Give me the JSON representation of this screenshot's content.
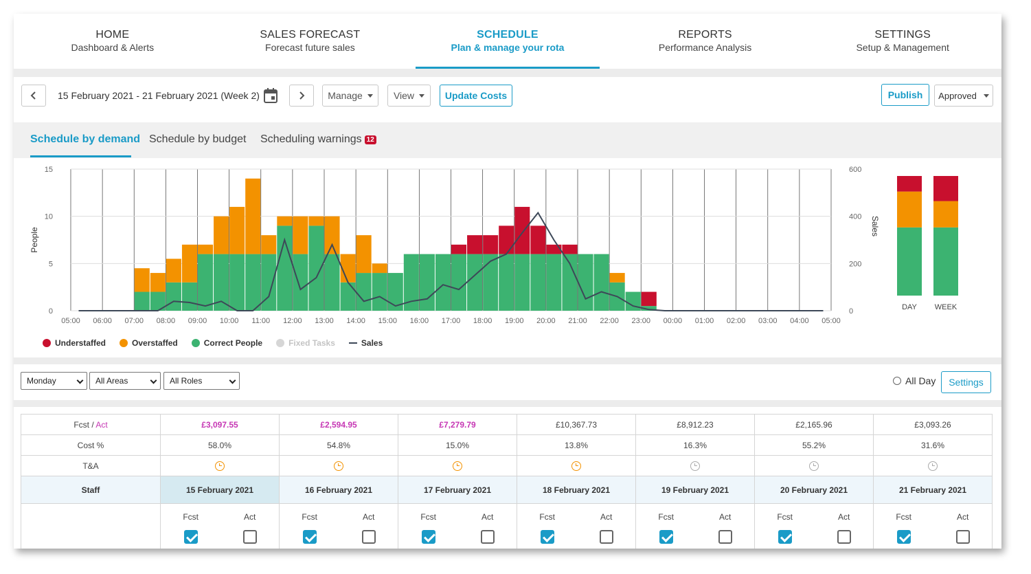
{
  "nav": [
    {
      "title": "HOME",
      "subtitle": "Dashboard & Alerts"
    },
    {
      "title": "SALES FORECAST",
      "subtitle": "Forecast future sales"
    },
    {
      "title": "SCHEDULE",
      "subtitle": "Plan & manage your rota"
    },
    {
      "title": "REPORTS",
      "subtitle": "Performance Analysis"
    },
    {
      "title": "SETTINGS",
      "subtitle": "Setup & Management"
    }
  ],
  "active_nav": "SCHEDULE",
  "toolbar": {
    "date_range": "15 February 2021 - 21 February 2021 (Week 2)",
    "manage_label": "Manage",
    "view_label": "View",
    "update_costs_label": "Update Costs",
    "publish_label": "Publish",
    "status_value": "Approved"
  },
  "tabs": {
    "demand": "Schedule by demand",
    "budget": "Schedule by budget",
    "warnings": "Scheduling warnings",
    "warnings_count": "12"
  },
  "colors": {
    "accent": "#1a9bc7",
    "understaffed": "#c8102e",
    "overstaffed": "#f39200",
    "correct": "#3cb371",
    "fixed": "#cccccc",
    "sales_line": "#3d4858"
  },
  "chart_data": {
    "type": "bar",
    "stacked": true,
    "ylabel": "People",
    "y2label": "Sales",
    "ylim": [
      0,
      15
    ],
    "y2lim": [
      0,
      600
    ],
    "yticks": [
      "0",
      "5",
      "10",
      "15"
    ],
    "y2ticks": [
      "0",
      "200",
      "400",
      "600"
    ],
    "time_labels": [
      "05:00",
      "06:00",
      "07:00",
      "08:00",
      "09:00",
      "10:00",
      "11:00",
      "12:00",
      "13:00",
      "14:00",
      "15:00",
      "16:00",
      "17:00",
      "18:00",
      "19:00",
      "20:00",
      "21:00",
      "22:00",
      "23:00",
      "00:00",
      "01:00",
      "02:00",
      "03:00",
      "04:00",
      "05:00"
    ],
    "series": [
      {
        "name": "Correct People",
        "values": [
          0,
          0,
          0,
          0,
          2,
          2,
          3,
          3,
          6,
          6,
          6,
          6,
          6,
          9,
          6,
          9,
          6,
          3,
          4,
          4,
          4,
          6,
          6,
          6,
          6,
          6,
          6,
          6,
          6,
          6,
          6,
          6,
          6,
          6,
          3,
          2,
          0.5,
          0,
          0,
          0,
          0,
          0,
          0,
          0,
          0,
          0,
          0,
          0
        ]
      },
      {
        "name": "Overstaffed",
        "values": [
          0,
          0,
          0,
          0,
          2.5,
          2,
          2.5,
          4,
          1,
          4,
          5,
          8,
          2,
          1,
          4,
          1,
          4,
          3,
          4,
          1,
          0,
          0,
          0,
          0,
          0,
          0,
          0,
          0,
          0,
          0,
          0,
          0,
          0,
          0,
          1,
          0,
          0,
          0,
          0,
          0,
          0,
          0,
          0,
          0,
          0,
          0,
          0,
          0
        ]
      },
      {
        "name": "Understaffed",
        "values": [
          0,
          0,
          0,
          0,
          0,
          0,
          0,
          0,
          0,
          0,
          0,
          0,
          0,
          0,
          0,
          0,
          0,
          0,
          0,
          0,
          0,
          0,
          0,
          0,
          1,
          2,
          2,
          3,
          5,
          3,
          1,
          1,
          0,
          0,
          0,
          0,
          1.5,
          0,
          0,
          0,
          0,
          0,
          0,
          0,
          0,
          0,
          0,
          0
        ]
      },
      {
        "name": "Sales",
        "values": [
          0,
          0,
          0,
          0,
          0,
          0,
          40,
          35,
          20,
          40,
          0,
          0,
          60,
          300,
          90,
          140,
          280,
          120,
          40,
          60,
          20,
          40,
          50,
          110,
          90,
          150,
          210,
          240,
          330,
          415,
          300,
          200,
          50,
          80,
          60,
          20,
          5,
          0,
          0,
          0,
          0,
          0,
          0,
          0,
          0,
          0,
          0,
          0
        ]
      }
    ],
    "legend": [
      "Understaffed",
      "Overstaffed",
      "Correct People",
      "Fixed Tasks",
      "Sales"
    ],
    "summary": [
      {
        "name": "DAY",
        "correct": 57,
        "overstaffed": 30,
        "understaffed": 13
      },
      {
        "name": "WEEK",
        "correct": 57,
        "overstaffed": 22,
        "understaffed": 21
      }
    ]
  },
  "filters": {
    "day": "Monday",
    "areas": "All Areas",
    "roles": "All Roles",
    "all_day_label": "All Day",
    "settings_label": "Settings"
  },
  "table": {
    "fcst_label": "Fcst",
    "act_label": "Act",
    "cost_label": "Cost %",
    "ta_label": "T&A",
    "staff_label": "Staff",
    "days": [
      {
        "value": "£3,097.55",
        "actual": true,
        "cost": "58.0%",
        "date": "15 February 2021",
        "ta": "orange"
      },
      {
        "value": "£2,594.95",
        "actual": true,
        "cost": "54.8%",
        "date": "16 February 2021",
        "ta": "orange"
      },
      {
        "value": "£7,279.79",
        "actual": true,
        "cost": "15.0%",
        "date": "17 February 2021",
        "ta": "orange"
      },
      {
        "value": "£10,367.73",
        "actual": false,
        "cost": "13.8%",
        "date": "18 February 2021",
        "ta": "orange"
      },
      {
        "value": "£8,912.23",
        "actual": false,
        "cost": "16.3%",
        "date": "19 February 2021",
        "ta": "grey"
      },
      {
        "value": "£2,165.96",
        "actual": false,
        "cost": "55.2%",
        "date": "20 February 2021",
        "ta": "grey"
      },
      {
        "value": "£3,093.26",
        "actual": false,
        "cost": "31.6%",
        "date": "21 February 2021",
        "ta": "grey"
      }
    ]
  }
}
